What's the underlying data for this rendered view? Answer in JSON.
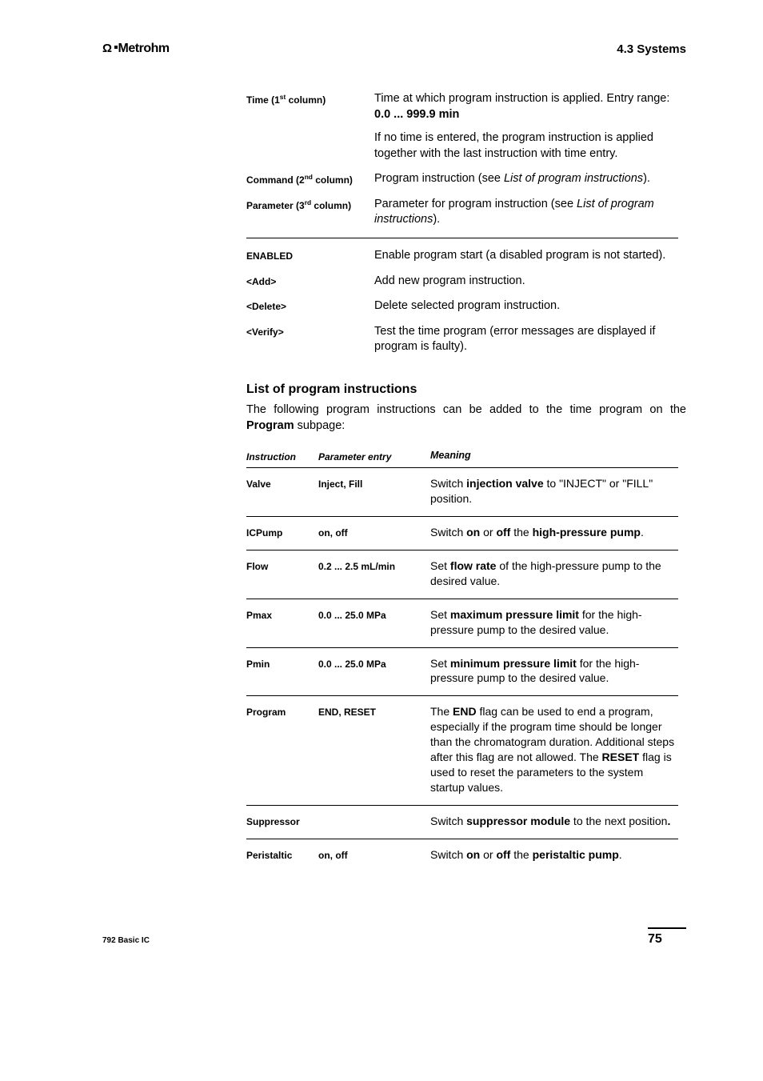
{
  "header": {
    "logo_text": "Metrohm",
    "section_label": "4.3  Systems"
  },
  "definitions": {
    "groups": [
      [
        {
          "label_html": "Time (1<sup class='ord'>st</sup> column)",
          "value_html": "Time at which program instruction is applied. Entry range: <b>0.0 ... 999.9 min</b><div class='sub'>If no time is entered, the program instruction is applied together with the last instruction with time entry.</div>"
        },
        {
          "label_html": "Command (2<sup class='ord'>nd</sup> column)",
          "value_html": "Program instruction (see <i>List of program instructions</i>)."
        },
        {
          "label_html": "Parameter (3<sup class='ord'>rd</sup> column)",
          "value_html": "Parameter for program instruction (see <i>List of program instructions</i>)."
        }
      ],
      [
        {
          "label_html": "ENABLED",
          "value_html": "Enable program start (a disabled program is not started)."
        },
        {
          "label_html": "&lt;Add&gt;",
          "value_html": "Add new program instruction."
        },
        {
          "label_html": "&lt;Delete&gt;",
          "value_html": "Delete selected program instruction."
        },
        {
          "label_html": "&lt;Verify&gt;",
          "value_html": "Test the time program (error messages are displayed if program is faulty)."
        }
      ]
    ]
  },
  "section": {
    "heading": "List of program instructions",
    "intro_html": "The following program instructions can be added to the time program on the <b>Program</b> subpage:"
  },
  "instr": {
    "headers": {
      "c1": "Instruction",
      "c2": "Parameter entry",
      "c3": "Meaning"
    },
    "rows": [
      {
        "instruction": "Valve",
        "param": "Inject, Fill",
        "meaning_html": "Switch <b>injection valve</b>  to \"INJECT\" or \"FILL\" position."
      },
      {
        "instruction": "ICPump",
        "param": "on, off",
        "meaning_html": "Switch <b>on</b> or <b>off</b> the <b>high-pressure pump</b>."
      },
      {
        "instruction": "Flow",
        "param": "0.2 ... 2.5 mL/min",
        "meaning_html": "Set <b>flow rate</b> of the high-pressure pump to the desired value."
      },
      {
        "instruction": "Pmax",
        "param": "0.0 ... 25.0 MPa",
        "meaning_html": "Set <b>maximum pressure limit</b> for the high-pressure pump to the desired value."
      },
      {
        "instruction": "Pmin",
        "param": "0.0 ... 25.0 MPa",
        "meaning_html": "Set <b>minimum pressure limit</b> for the high-pressure pump to the desired value."
      },
      {
        "instruction": "Program",
        "param": "END, RESET",
        "meaning_html": "The <b>END</b> flag can be used to end a program, especially if the program time should be longer than the chromatogram duration. Additional steps after this flag are not allowed. The <b>RESET</b> flag is used to reset the parameters to the system startup values."
      },
      {
        "instruction": "Suppressor",
        "param": "",
        "meaning_html": "Switch <b>suppressor module</b> to the next position<b>.</b>"
      },
      {
        "instruction": "Peristaltic",
        "param": "on, off",
        "meaning_html": "Switch <b>on</b> or <b>off</b> the <b>peristaltic pump</b>."
      }
    ]
  },
  "footer": {
    "left": "792 Basic IC",
    "page": "75"
  }
}
